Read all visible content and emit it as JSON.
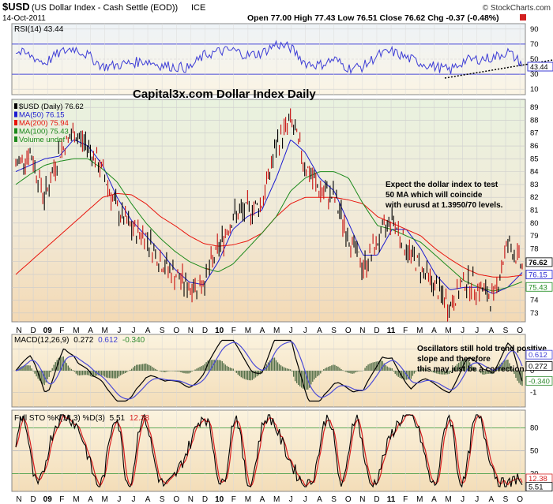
{
  "header": {
    "symbol": "$USD",
    "description": "(US Dollar Index - Cash Settle (EOD))",
    "exchange": "ICE",
    "date": "14-Oct-2011",
    "ohlc": "Open 77.00  High 77.43  Low 76.51  Close 76.62  Chg -0.37 (-0.48%)",
    "brand": "© StockCharts.com"
  },
  "rsi": {
    "label": "RSI(14) 43.44",
    "ticks": [
      "90",
      "70",
      "50",
      "30",
      "10"
    ],
    "last_label": "43.44"
  },
  "main": {
    "title": "Capital3x.com Dollar Index Daily",
    "legend": [
      {
        "text": "$USD (Daily) 76.62",
        "color": "#000000"
      },
      {
        "text": "MA(50) 76.15",
        "color": "#1b1bd0"
      },
      {
        "text": "MA(200) 75.94",
        "color": "#e8140c"
      },
      {
        "text": "MA(100) 75.43",
        "color": "#1c8a1c"
      },
      {
        "text": "Volume undef",
        "color": "#1c8a1c"
      }
    ],
    "ticks": [
      "89",
      "88",
      "87",
      "86",
      "85",
      "84",
      "83",
      "82",
      "81",
      "80",
      "79",
      "78",
      "77",
      "76",
      "75",
      "74",
      "73"
    ],
    "annotation": [
      "Expect the dollar index to test",
      "50 MA which will coincide",
      "with eurusd at 1.3950/70 levels."
    ],
    "price_labels": [
      {
        "text": "76.62",
        "color": "#000000"
      },
      {
        "text": "76.15",
        "color": "#1b1bd0"
      },
      {
        "text": "75.43",
        "color": "#1c8a1c"
      }
    ]
  },
  "months": [
    "N",
    "D",
    "09",
    "F",
    "M",
    "A",
    "M",
    "J",
    "J",
    "A",
    "S",
    "O",
    "N",
    "D",
    "10",
    "F",
    "M",
    "A",
    "M",
    "J",
    "J",
    "A",
    "S",
    "O",
    "N",
    "D",
    "11",
    "F",
    "M",
    "A",
    "M",
    "J",
    "J",
    "A",
    "S",
    "O"
  ],
  "macd": {
    "label_prefix": "MACD(12,26,9)",
    "v1": "0.272",
    "v2": "0.612",
    "v3": "-0.340",
    "ticks": [
      "1",
      "0",
      "-1"
    ],
    "annotation": [
      "Oscillators still hold trend positive",
      "slope and therefore",
      "this may just be a correction."
    ],
    "right_labels": [
      "0.612",
      "0.272",
      "-0.340"
    ]
  },
  "sto": {
    "label_prefix": "Full STO %K(14,3) %D(3)",
    "v1": "5.51",
    "v2": "12.38",
    "ticks": [
      "80",
      "50",
      "20"
    ],
    "right_labels": [
      "12.38",
      "5.51"
    ]
  },
  "chart_data": {
    "type": "line",
    "title": "Capital3x.com Dollar Index Daily",
    "ylim": [
      72.5,
      89.5
    ],
    "x_axis_labels": [
      "N",
      "D",
      "09",
      "F",
      "M",
      "A",
      "M",
      "J",
      "J",
      "A",
      "S",
      "O",
      "N",
      "D",
      "10",
      "F",
      "M",
      "A",
      "M",
      "J",
      "J",
      "A",
      "S",
      "O",
      "N",
      "D",
      "11",
      "F",
      "M",
      "A",
      "M",
      "J",
      "J",
      "A",
      "S",
      "O"
    ],
    "series": [
      {
        "name": "$USD (Daily)",
        "values": [
          84.5,
          85.5,
          82.0,
          85.5,
          87.0,
          86.0,
          84.0,
          81.0,
          79.5,
          79.0,
          77.0,
          76.0,
          75.0,
          75.5,
          78.0,
          80.5,
          81.0,
          81.5,
          86.0,
          88.0,
          84.5,
          82.5,
          82.0,
          79.0,
          76.5,
          78.5,
          80.5,
          78.0,
          76.5,
          75.0,
          73.5,
          75.5,
          75.0,
          74.0,
          78.5,
          76.62
        ],
        "color": "#000000"
      },
      {
        "name": "MA(50)",
        "values": [
          84.0,
          84.5,
          85.0,
          85.2,
          86.5,
          86.0,
          84.5,
          82.0,
          80.2,
          79.0,
          77.8,
          76.4,
          75.4,
          75.2,
          77.0,
          79.5,
          80.5,
          81.0,
          83.5,
          86.5,
          85.5,
          83.5,
          82.5,
          80.0,
          77.5,
          77.5,
          79.5,
          79.5,
          78.0,
          76.0,
          74.8,
          75.0,
          75.0,
          74.5,
          75.0,
          76.15
        ],
        "color": "#1b1bd0"
      },
      {
        "name": "MA(200)",
        "values": [
          76.0,
          77.0,
          78.0,
          79.0,
          80.0,
          81.0,
          82.0,
          82.3,
          82.2,
          81.5,
          80.5,
          79.8,
          79.0,
          78.4,
          78.2,
          78.3,
          78.6,
          79.2,
          80.5,
          81.5,
          82.0,
          82.0,
          82.0,
          81.8,
          81.5,
          80.5,
          80.0,
          79.5,
          79.0,
          78.0,
          77.2,
          76.5,
          76.0,
          75.8,
          75.8,
          75.94
        ],
        "color": "#e8140c"
      },
      {
        "name": "MA(100)",
        "values": [
          83.0,
          83.8,
          84.5,
          84.8,
          85.0,
          85.0,
          84.2,
          83.2,
          81.5,
          80.0,
          78.8,
          77.8,
          77.0,
          76.5,
          76.2,
          76.8,
          78.0,
          79.2,
          80.5,
          82.5,
          83.5,
          84.0,
          84.0,
          83.5,
          81.5,
          79.8,
          79.5,
          79.0,
          78.5,
          77.5,
          76.5,
          75.5,
          75.0,
          74.7,
          75.0,
          75.43
        ],
        "color": "#1c8a1c"
      }
    ],
    "price": {
      "open": 77.0,
      "high": 77.43,
      "low": 76.51,
      "close": 76.62,
      "change": -0.37,
      "change_pct": -0.48
    },
    "rsi": {
      "period": 14,
      "last": 43.44,
      "values": [
        60,
        55,
        45,
        58,
        65,
        55,
        40,
        42,
        45,
        48,
        42,
        40,
        38,
        55,
        60,
        62,
        55,
        58,
        70,
        65,
        45,
        42,
        50,
        38,
        40,
        55,
        60,
        52,
        45,
        40,
        35,
        48,
        50,
        52,
        60,
        43.44
      ],
      "levels": [
        70,
        30
      ]
    },
    "macd": {
      "fast": 12,
      "slow": 26,
      "signal": 9,
      "macd": 0.272,
      "signal_value": 0.612,
      "histogram": -0.34,
      "ylim": [
        -1.6,
        1.6
      ]
    },
    "stochastic": {
      "k": 5.51,
      "d": 12.38,
      "levels": [
        80,
        50,
        20
      ],
      "ylim": [
        0,
        100
      ]
    }
  }
}
